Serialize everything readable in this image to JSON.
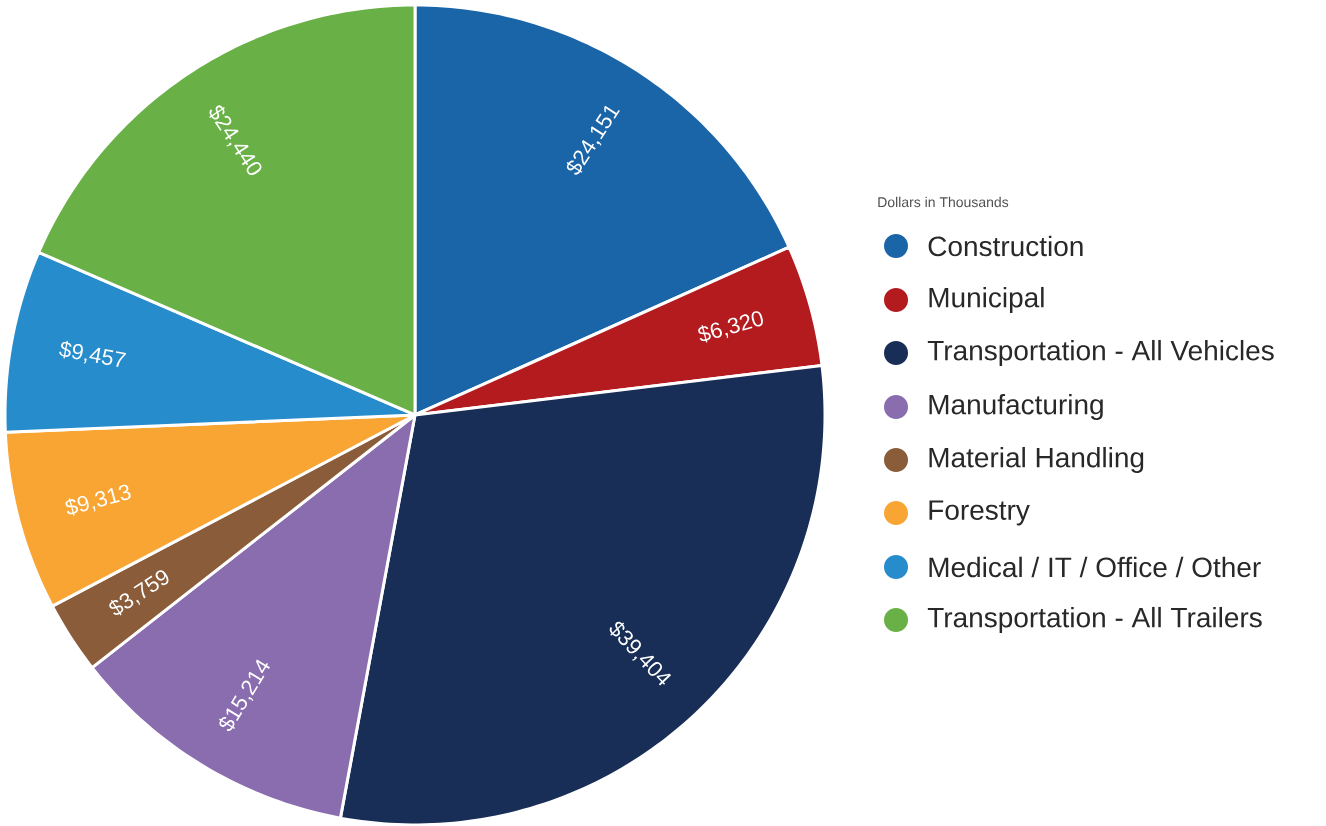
{
  "chart_data": {
    "type": "pie",
    "legend_title": "Dollars in Thousands",
    "categories": [
      "Construction",
      "Municipal",
      "Transportation - All Vehicles",
      "Manufacturing",
      "Material Handling",
      "Forestry",
      "Medical / IT / Office / Other",
      "Transportation - All Trailers"
    ],
    "values": [
      24151,
      6320,
      39404,
      15214,
      3759,
      9313,
      9457,
      24440
    ],
    "colors": [
      "#1a64a8",
      "#b31b1f",
      "#182e56",
      "#8a6daf",
      "#8a5c3a",
      "#f9a533",
      "#268ccc",
      "#69b046"
    ],
    "value_labels": [
      "$24,151",
      "$6,320",
      "$39,404",
      "$15,214",
      "$3,759",
      "$9,313",
      "$9,457",
      "$24,440"
    ],
    "legend": "right"
  }
}
